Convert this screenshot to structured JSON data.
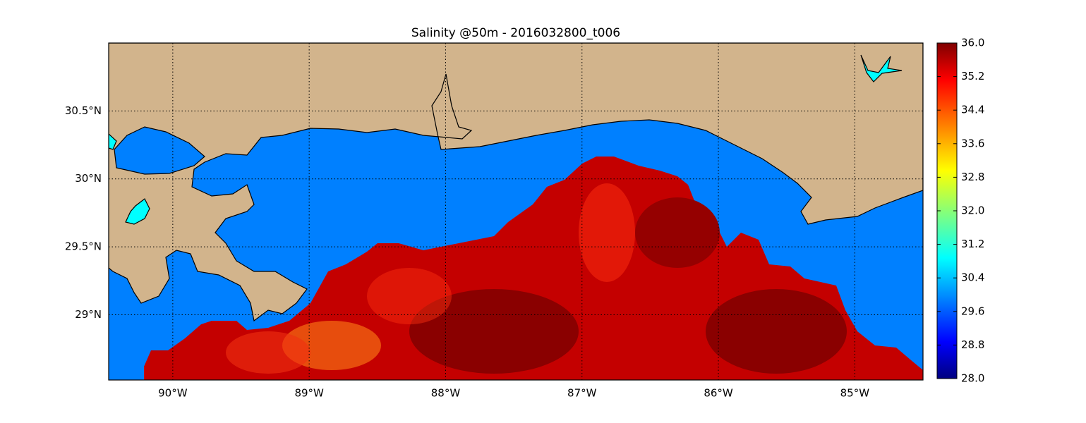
{
  "chart_data": {
    "type": "map",
    "title": "Salinity @50m - 2016032800_t006",
    "xlim": [
      -90.47,
      -84.5
    ],
    "ylim": [
      28.52,
      31.0
    ],
    "xticks": [
      {
        "value": -90,
        "label": "90°W"
      },
      {
        "value": -89,
        "label": "89°W"
      },
      {
        "value": -88,
        "label": "88°W"
      },
      {
        "value": -87,
        "label": "87°W"
      },
      {
        "value": -86,
        "label": "86°W"
      },
      {
        "value": -85,
        "label": "85°W"
      }
    ],
    "yticks": [
      {
        "value": 29,
        "label": "29°N"
      },
      {
        "value": 29.5,
        "label": "29.5°N"
      },
      {
        "value": 30,
        "label": "30°N"
      },
      {
        "value": 30.5,
        "label": "30.5°N"
      }
    ],
    "grid": true,
    "colorbar": {
      "lim": [
        28,
        36
      ],
      "ticks": [
        {
          "value": 28,
          "label": "28.0"
        },
        {
          "value": 28.8,
          "label": "28.8"
        },
        {
          "value": 29.6,
          "label": "29.6"
        },
        {
          "value": 30.4,
          "label": "30.4"
        },
        {
          "value": 31.2,
          "label": "31.2"
        },
        {
          "value": 32,
          "label": "32.0"
        },
        {
          "value": 32.8,
          "label": "32.8"
        },
        {
          "value": 33.6,
          "label": "33.6"
        },
        {
          "value": 34.4,
          "label": "34.4"
        },
        {
          "value": 35.2,
          "label": "35.2"
        },
        {
          "value": 36,
          "label": "36.0"
        }
      ]
    }
  }
}
